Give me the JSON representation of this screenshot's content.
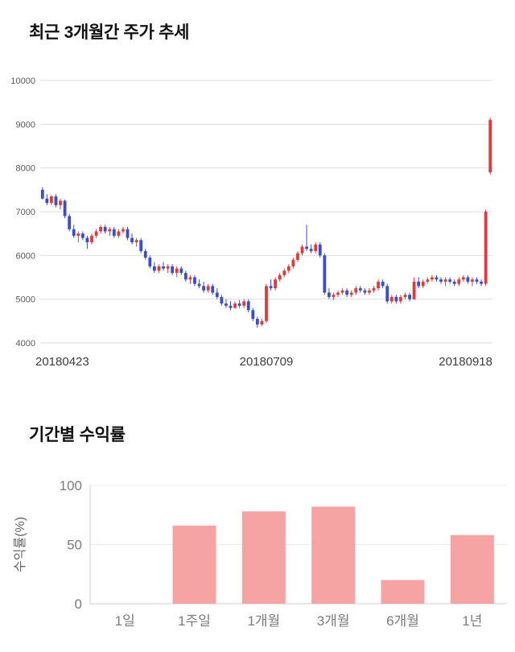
{
  "chart_data": [
    {
      "type": "candlestick",
      "title": "최근 3개월간 주가 추세",
      "ylim": [
        4000,
        10000
      ],
      "yticks": [
        10000,
        9000,
        8000,
        7000,
        6000,
        5000,
        4000
      ],
      "xticks": [
        "20180423",
        "20180709",
        "20180918"
      ],
      "grid": true,
      "legend": "none",
      "colors": {
        "up": "#e03b3b",
        "down": "#3b4ccc",
        "grid": "#dedede",
        "tick": "#595959",
        "date": "#3d3d3d"
      },
      "candles": [
        [
          7500,
          7560,
          7280,
          7300
        ],
        [
          7300,
          7400,
          7150,
          7200
        ],
        [
          7200,
          7380,
          7150,
          7350
        ],
        [
          7350,
          7400,
          7100,
          7150
        ],
        [
          7150,
          7300,
          7050,
          7250
        ],
        [
          7250,
          7280,
          6850,
          6900
        ],
        [
          6900,
          6950,
          6550,
          6600
        ],
        [
          6600,
          6700,
          6400,
          6450
        ],
        [
          6450,
          6550,
          6300,
          6500
        ],
        [
          6500,
          6550,
          6350,
          6400
        ],
        [
          6400,
          6450,
          6150,
          6300
        ],
        [
          6300,
          6500,
          6250,
          6450
        ],
        [
          6450,
          6600,
          6400,
          6550
        ],
        [
          6550,
          6700,
          6500,
          6650
        ],
        [
          6650,
          6700,
          6500,
          6550
        ],
        [
          6550,
          6650,
          6450,
          6600
        ],
        [
          6600,
          6650,
          6400,
          6450
        ],
        [
          6450,
          6600,
          6400,
          6550
        ],
        [
          6550,
          6650,
          6500,
          6600
        ],
        [
          6600,
          6650,
          6350,
          6400
        ],
        [
          6400,
          6500,
          6250,
          6300
        ],
        [
          6300,
          6400,
          6200,
          6350
        ],
        [
          6350,
          6400,
          6050,
          6100
        ],
        [
          6100,
          6150,
          5900,
          5950
        ],
        [
          5950,
          6000,
          5700,
          5750
        ],
        [
          5750,
          5850,
          5600,
          5650
        ],
        [
          5650,
          5800,
          5600,
          5750
        ],
        [
          5750,
          5850,
          5650,
          5700
        ],
        [
          5700,
          5800,
          5600,
          5750
        ],
        [
          5750,
          5800,
          5550,
          5600
        ],
        [
          5600,
          5750,
          5500,
          5700
        ],
        [
          5700,
          5750,
          5550,
          5600
        ],
        [
          5600,
          5650,
          5400,
          5450
        ],
        [
          5450,
          5550,
          5350,
          5500
        ],
        [
          5500,
          5550,
          5300,
          5350
        ],
        [
          5350,
          5450,
          5250,
          5300
        ],
        [
          5300,
          5400,
          5150,
          5200
        ],
        [
          5200,
          5350,
          5150,
          5300
        ],
        [
          5300,
          5350,
          5100,
          5150
        ],
        [
          5150,
          5250,
          5000,
          5050
        ],
        [
          5050,
          5100,
          4850,
          4900
        ],
        [
          4900,
          5000,
          4800,
          4850
        ],
        [
          4850,
          4950,
          4750,
          4800
        ],
        [
          4800,
          4950,
          4780,
          4900
        ],
        [
          4900,
          4980,
          4800,
          4850
        ],
        [
          4850,
          5000,
          4800,
          4950
        ],
        [
          4950,
          5000,
          4700,
          4750
        ],
        [
          4750,
          4800,
          4500,
          4550
        ],
        [
          4550,
          4600,
          4350,
          4420
        ],
        [
          4420,
          4550,
          4380,
          4500
        ],
        [
          4500,
          5350,
          4450,
          5300
        ],
        [
          5300,
          5450,
          5200,
          5250
        ],
        [
          5250,
          5500,
          5200,
          5450
        ],
        [
          5450,
          5600,
          5400,
          5550
        ],
        [
          5550,
          5700,
          5500,
          5650
        ],
        [
          5650,
          5800,
          5600,
          5750
        ],
        [
          5750,
          5950,
          5700,
          5900
        ],
        [
          5900,
          6100,
          5850,
          6050
        ],
        [
          6050,
          6250,
          6000,
          6200
        ],
        [
          6200,
          6700,
          6100,
          6150
        ],
        [
          6150,
          6250,
          6050,
          6100
        ],
        [
          6100,
          6300,
          6050,
          6250
        ],
        [
          6250,
          6300,
          5950,
          6000
        ],
        [
          6000,
          6050,
          5100,
          5150
        ],
        [
          5150,
          5250,
          5000,
          5050
        ],
        [
          5050,
          5150,
          4980,
          5100
        ],
        [
          5100,
          5200,
          5050,
          5150
        ],
        [
          5150,
          5250,
          5100,
          5200
        ],
        [
          5200,
          5250,
          5050,
          5100
        ],
        [
          5100,
          5200,
          5050,
          5150
        ],
        [
          5150,
          5300,
          5100,
          5250
        ],
        [
          5250,
          5300,
          5150,
          5200
        ],
        [
          5200,
          5250,
          5100,
          5150
        ],
        [
          5150,
          5250,
          5100,
          5200
        ],
        [
          5200,
          5300,
          5150,
          5250
        ],
        [
          5250,
          5450,
          5200,
          5400
        ],
        [
          5400,
          5450,
          5250,
          5300
        ],
        [
          5300,
          5350,
          4900,
          4950
        ],
        [
          4950,
          5100,
          4900,
          5050
        ],
        [
          5050,
          5100,
          4900,
          4950
        ],
        [
          4950,
          5100,
          4900,
          5050
        ],
        [
          5050,
          5150,
          5000,
          5100
        ],
        [
          5100,
          5150,
          4950,
          5000
        ],
        [
          5000,
          5500,
          4980,
          5400
        ],
        [
          5400,
          5500,
          5250,
          5300
        ],
        [
          5300,
          5450,
          5250,
          5400
        ],
        [
          5400,
          5500,
          5350,
          5450
        ],
        [
          5450,
          5550,
          5400,
          5500
        ],
        [
          5500,
          5550,
          5400,
          5450
        ],
        [
          5450,
          5500,
          5350,
          5400
        ],
        [
          5400,
          5500,
          5300,
          5450
        ],
        [
          5450,
          5500,
          5350,
          5400
        ],
        [
          5400,
          5450,
          5300,
          5350
        ],
        [
          5350,
          5500,
          5300,
          5450
        ],
        [
          5450,
          5550,
          5400,
          5500
        ],
        [
          5500,
          5550,
          5350,
          5400
        ],
        [
          5400,
          5500,
          5300,
          5450
        ],
        [
          5450,
          5500,
          5350,
          5400
        ],
        [
          5400,
          5450,
          5300,
          5350
        ],
        [
          5350,
          7050,
          5300,
          7000
        ],
        [
          7900,
          9150,
          7850,
          9100
        ]
      ]
    },
    {
      "type": "bar",
      "title": "기간별 수익률",
      "categories": [
        "1일",
        "1주일",
        "1개월",
        "3개월",
        "6개월",
        "1년"
      ],
      "values": [
        0,
        66,
        78,
        82,
        20,
        58
      ],
      "ylabel": "수익률(%)",
      "xlabel": "",
      "ylim": [
        0,
        100
      ],
      "yticks": [
        0,
        50,
        100
      ],
      "grid": true,
      "legend": "none",
      "colors": {
        "bar": "#f5a3a3",
        "axis": "#cfcfcf",
        "grid": "#ececec",
        "tick": "#7b7b7b",
        "label": "#666666"
      }
    }
  ]
}
